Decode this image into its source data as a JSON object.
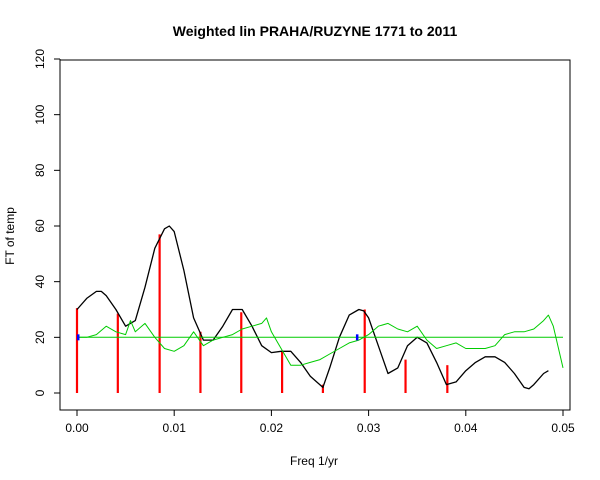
{
  "chart_data": {
    "type": "line",
    "title": "Weighted lin PRAHA/RUZYNE 1771 to 2011",
    "xlabel": "Freq 1/yr",
    "ylabel": "FT of temp",
    "xlim": [
      0.0,
      0.05
    ],
    "ylim": [
      0,
      120
    ],
    "x_ticks": [
      "0.00",
      "0.01",
      "0.02",
      "0.03",
      "0.04",
      "0.05"
    ],
    "x_tick_values": [
      0.0,
      0.01,
      0.02,
      0.03,
      0.04,
      0.05
    ],
    "y_ticks": [
      "0",
      "20",
      "40",
      "60",
      "80",
      "100",
      "120"
    ],
    "y_tick_values": [
      0,
      20,
      40,
      60,
      80,
      100,
      120
    ],
    "grid": false,
    "series": [
      {
        "color": "#000000",
        "style": "line",
        "x": [
          0.0,
          0.001,
          0.002,
          0.0025,
          0.003,
          0.004,
          0.005,
          0.006,
          0.007,
          0.008,
          0.009,
          0.0095,
          0.01,
          0.011,
          0.012,
          0.013,
          0.014,
          0.015,
          0.016,
          0.017,
          0.018,
          0.019,
          0.02,
          0.021,
          0.022,
          0.023,
          0.024,
          0.0253,
          0.026,
          0.027,
          0.028,
          0.029,
          0.0295,
          0.03,
          0.031,
          0.032,
          0.033,
          0.034,
          0.035,
          0.036,
          0.037,
          0.038,
          0.039,
          0.04,
          0.041,
          0.042,
          0.043,
          0.044,
          0.045,
          0.046,
          0.0465,
          0.047,
          0.048,
          0.0485
        ],
        "y": [
          30,
          34,
          36.5,
          36.5,
          35,
          30,
          24,
          26,
          38,
          52,
          59,
          60,
          58,
          44,
          27,
          19,
          19,
          24,
          30,
          30,
          24,
          17,
          14.5,
          15,
          15,
          11,
          6,
          2,
          9,
          20,
          28,
          30,
          29.5,
          27,
          17,
          7,
          9,
          17,
          20,
          18,
          11,
          3,
          4,
          8,
          11,
          13,
          13,
          11,
          7,
          2,
          1.5,
          3,
          7,
          8
        ]
      },
      {
        "color": "#00cc00",
        "style": "line",
        "x": [
          0.0,
          0.001,
          0.002,
          0.003,
          0.004,
          0.005,
          0.0055,
          0.006,
          0.007,
          0.008,
          0.009,
          0.01,
          0.011,
          0.012,
          0.013,
          0.014,
          0.015,
          0.016,
          0.017,
          0.018,
          0.019,
          0.0195,
          0.02,
          0.021,
          0.022,
          0.023,
          0.024,
          0.025,
          0.026,
          0.027,
          0.028,
          0.029,
          0.03,
          0.031,
          0.032,
          0.033,
          0.034,
          0.035,
          0.036,
          0.037,
          0.038,
          0.039,
          0.04,
          0.041,
          0.042,
          0.043,
          0.044,
          0.045,
          0.046,
          0.047,
          0.048,
          0.0485,
          0.049,
          0.0498,
          0.05
        ],
        "y": [
          20,
          20,
          21,
          24,
          22,
          21,
          26,
          22,
          25,
          20,
          16,
          15,
          17,
          22,
          17,
          19,
          20,
          21,
          23,
          24,
          25,
          27,
          22,
          16,
          10,
          10,
          11,
          12,
          14,
          16,
          18,
          19,
          21,
          24,
          25,
          23,
          22,
          24,
          19,
          16,
          17,
          18,
          16,
          16,
          16,
          17,
          21,
          22,
          22,
          23,
          26,
          28,
          24,
          12,
          9
        ]
      },
      {
        "color": "#00cc00",
        "style": "line",
        "x": [
          0.0,
          0.05
        ],
        "y": [
          20,
          20
        ]
      }
    ],
    "vertical_lines": {
      "color": "#ff0000",
      "x": [
        0.0,
        0.0042,
        0.0085,
        0.0127,
        0.0169,
        0.0211,
        0.0253,
        0.0296,
        0.0338,
        0.0381
      ],
      "y": [
        30.5,
        28.5,
        57,
        22,
        29,
        15,
        3,
        30,
        12,
        10
      ]
    },
    "markers": {
      "color": "#0000ff",
      "x": [
        0.0001,
        0.0288
      ],
      "y": [
        20,
        20
      ]
    }
  }
}
